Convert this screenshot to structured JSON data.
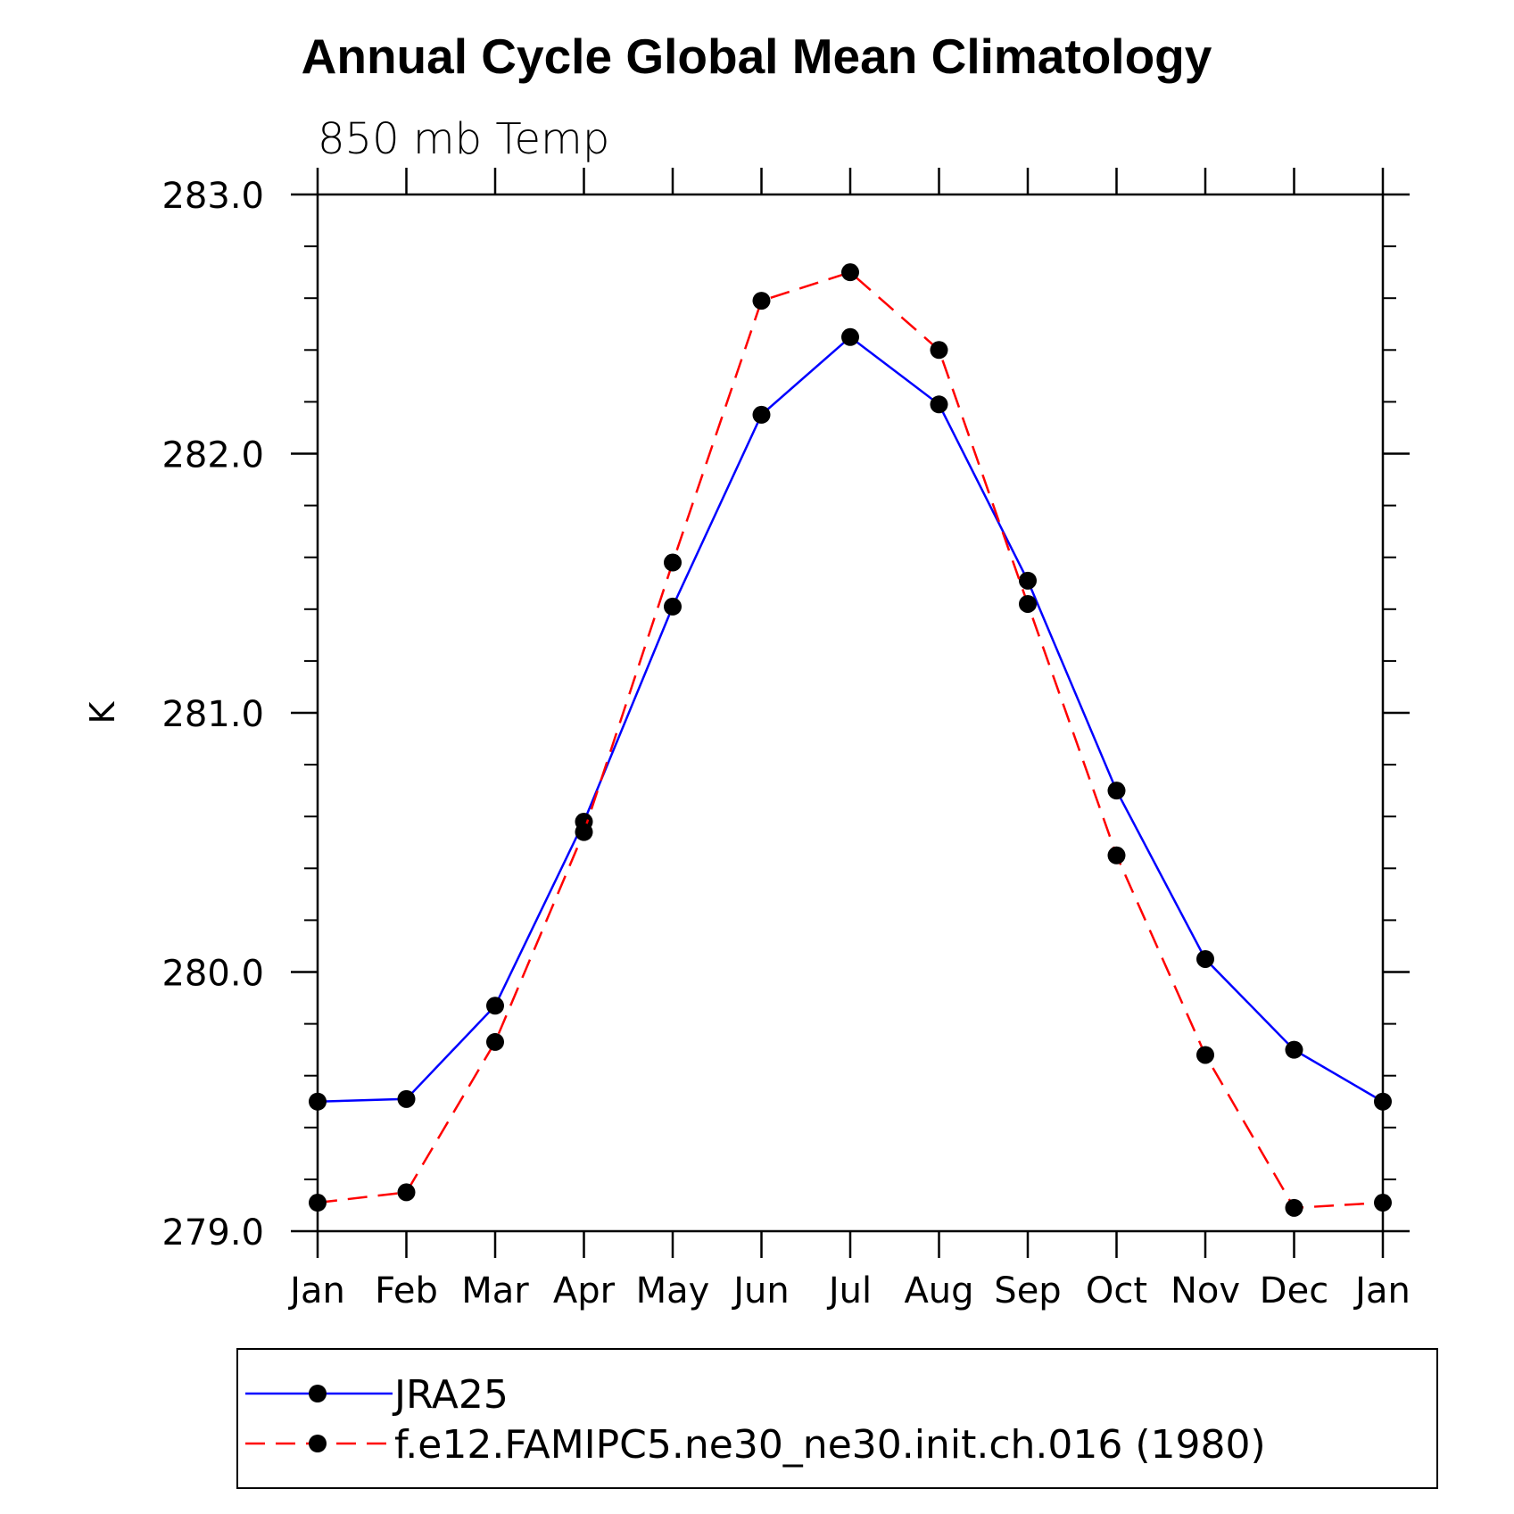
{
  "chart_data": {
    "type": "line",
    "title": "Annual Cycle Global Mean Climatology",
    "subtitle": "850 mb Temp",
    "xlabel": "",
    "ylabel": "K",
    "categories": [
      "Jan",
      "Feb",
      "Mar",
      "Apr",
      "May",
      "Jun",
      "Jul",
      "Aug",
      "Sep",
      "Oct",
      "Nov",
      "Dec",
      "Jan"
    ],
    "ylim": [
      279.0,
      283.0
    ],
    "yticks": [
      279.0,
      280.0,
      281.0,
      282.0,
      283.0
    ],
    "ytick_labels": [
      "279.0",
      "280.0",
      "281.0",
      "282.0",
      "283.0"
    ],
    "y_minor_step": 0.2,
    "grid": false,
    "legend_position": "bottom",
    "series": [
      {
        "name": "JRA25",
        "color": "#0000ff",
        "line_style": "solid",
        "marker": "filled-circle",
        "values": [
          279.5,
          279.51,
          279.87,
          280.58,
          281.41,
          282.15,
          282.45,
          282.19,
          281.51,
          280.7,
          280.05,
          279.7,
          279.5
        ]
      },
      {
        "name": "f.e12.FAMIPC5.ne30_ne30.init.ch.016 (1980)",
        "color": "#ff0000",
        "line_style": "dashed",
        "marker": "filled-circle",
        "values": [
          279.11,
          279.15,
          279.73,
          280.54,
          281.58,
          282.59,
          282.7,
          282.4,
          281.42,
          280.45,
          279.68,
          279.09,
          279.11
        ]
      }
    ]
  }
}
